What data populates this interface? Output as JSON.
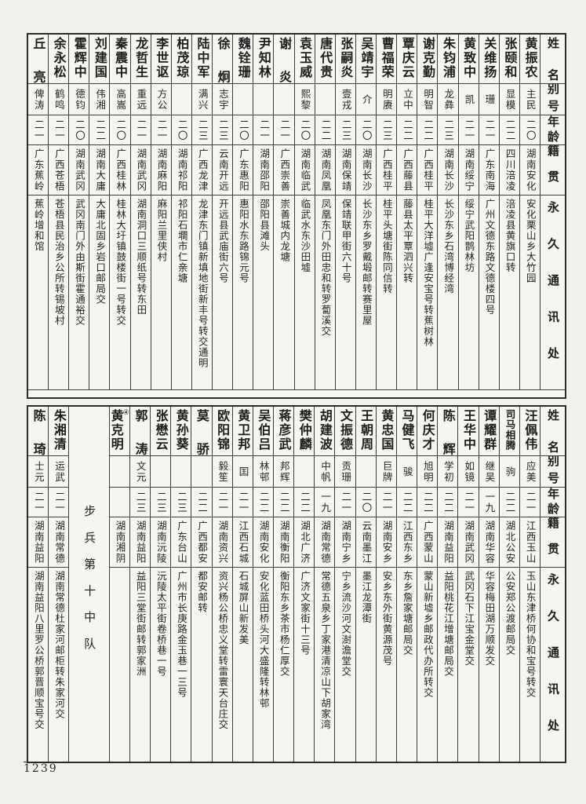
{
  "document": {
    "page_number": "1239",
    "column_headers": [
      "姓名",
      "别号",
      "年龄",
      "籍贯",
      "永久通讯处"
    ]
  },
  "tables": [
    {
      "id": "top",
      "people": [
        {
          "name": "黄振农",
          "alias": "主民",
          "age": "二〇",
          "native": "湖南安化",
          "address": "安化栗山乡大竹园"
        },
        {
          "name": "张颐和",
          "alias": "显模",
          "age": "二二",
          "native": "四川涪凌",
          "address": "涪凌县黄旗口转"
        },
        {
          "name": "关维扬",
          "alias": "珊",
          "age": "二一",
          "native": "广东南海",
          "address": "广州文德东路文德楼四号"
        },
        {
          "name": "黄致中",
          "alias": "凯",
          "age": "二一",
          "native": "湖南绥宁",
          "address": "绥宁武阳鹊林坊"
        },
        {
          "name": "朱钧浦",
          "alias": "龙彝",
          "age": "二三",
          "native": "湖南长沙",
          "address": "长沙东乡石湾博经湾"
        },
        {
          "name": "谢克勤",
          "alias": "明智",
          "age": "二二",
          "native": "广西桂平",
          "address": "桂平大洋墟广逢安宝号转蕉树林"
        },
        {
          "name": "覃庆云",
          "alias": "立中",
          "age": "二二",
          "native": "广西藤县",
          "address": "藤县太平覃泗兴转"
        },
        {
          "name": "曹福荣",
          "alias": "明赓",
          "age": "二三",
          "native": "广西桂平",
          "address": "桂平头塘街陈同信转"
        },
        {
          "name": "吴靖宇",
          "alias": "介",
          "age": "二〇",
          "native": "湖南长沙",
          "address": "长沙东乡罗戴塅邮转赛里屋"
        },
        {
          "name": "张嗣炎",
          "alias": "壹戎",
          "age": "二三",
          "native": "湖南保靖",
          "address": "保靖联甲街六十号"
        },
        {
          "name": "唐代贵",
          "alias": "",
          "age": "二二",
          "native": "湖南凤凰",
          "address": "凤凰东门外田忠和转罗蔔溪交"
        },
        {
          "name": "袁玉威",
          "alias": "熙黎",
          "age": "二〇",
          "native": "湖南临武",
          "address": "临武水东沙田墟"
        },
        {
          "name": "谢炎",
          "alias": "",
          "age": "二一",
          "native": "广西崇善",
          "address": "崇善城内龙塘"
        },
        {
          "name": "尹知林",
          "alias": "",
          "age": "二一",
          "native": "湖南邵阳",
          "address": "邵阳县滩头"
        },
        {
          "name": "魏铨珊",
          "alias": "",
          "age": "二〇",
          "native": "广东惠阳",
          "address": "惠阳水东路锦元号"
        },
        {
          "name": "徐炯",
          "alias": "志宇",
          "age": "二三",
          "native": "云南开远",
          "address": "开远县武庙街六号"
        },
        {
          "name": "陆中军",
          "alias": "满兴",
          "age": "二三",
          "native": "广西龙津",
          "address": "龙津东门镇新填地街新丰号转交通明"
        },
        {
          "name": "柏茂琼",
          "alias": "",
          "age": "二〇",
          "native": "湖南祁阳",
          "address": "祁阳石墹市仁亲塘"
        },
        {
          "name": "李世讴",
          "alias": "方公",
          "age": "二一",
          "native": "湖南麻阳",
          "address": "麻阳兰里侠村"
        },
        {
          "name": "龙哲生",
          "alias": "重远",
          "age": "二一",
          "native": "湖南武冈",
          "address": "湖南洞口三顺纸号转东田"
        },
        {
          "name": "秦震中",
          "alias": "高嵩",
          "age": "二〇",
          "native": "广西桂林",
          "address": "桂林大圩镇鼓楼街一号转交"
        },
        {
          "name": "刘建国",
          "alias": "伟湘",
          "age": "二二",
          "native": "湖南大庸",
          "address": "大庸北固乡岩口邮局交"
        },
        {
          "name": "霍辉中",
          "alias": "德钧",
          "age": "二〇",
          "native": "湖南武冈",
          "address": "武冈南门外由斯街霍通裕交"
        },
        {
          "name": "余永松",
          "alias": "鹤鸣",
          "age": "二一",
          "native": "广西苍梧",
          "address": "苍梧县民治乡公所转锡坡村"
        },
        {
          "name": "丘亮",
          "alias": "俾涛",
          "age": "二一",
          "native": "广东蕉岭",
          "address": "蕉岭增和馆"
        }
      ]
    },
    {
      "id": "bottom",
      "people": [
        {
          "name": "汪佩伟",
          "alias": "应美",
          "age": "二一",
          "native": "江西玉山",
          "address": "玉山东津桥何协和宝号转交"
        },
        {
          "name": "司马相腾",
          "alias": "驹",
          "age": "二二",
          "native": "湖北公安",
          "address": "公安郑公渡邮局交"
        },
        {
          "name": "谭耀群",
          "alias": "继吴",
          "age": "一九",
          "native": "湖南华容",
          "address": "华容梅田湖万顺发交"
        },
        {
          "name": "王华中",
          "alias": "如镜",
          "age": "二一",
          "native": "湖南武冈",
          "address": "武冈石下江宝金堂交"
        },
        {
          "name": "陈辉",
          "alias": "学初",
          "age": "二二",
          "native": "湖南益阳",
          "address": "益阳桃花江增塘邮局交"
        },
        {
          "name": "何庆才",
          "alias": "旭明",
          "age": "二二",
          "native": "广西蒙山",
          "address": "蒙山新墟乡邮政代办所转交"
        },
        {
          "name": "马健飞",
          "alias": "骏",
          "age": "二二",
          "native": "江西东乡",
          "address": "东乡詹家塘邮局交"
        },
        {
          "name": "黄忠国",
          "alias": "巨牌",
          "age": "二一",
          "native": "湖南安乡",
          "address": "安乡东外街黄源茂号"
        },
        {
          "name": "王朝周",
          "alias": "",
          "age": "二〇",
          "native": "云南墨江",
          "address": "墨江龙潭街"
        },
        {
          "name": "文振德",
          "alias": "贡珊",
          "age": "二一",
          "native": "湖南宁乡",
          "address": "宁乡流沙河文澍澹堂交"
        },
        {
          "name": "胡建波",
          "alias": "中帆",
          "age": "一九",
          "native": "湖南常德",
          "address": "常德五泉乡丁家港清凉山下胡家湾"
        },
        {
          "name": "樊仲麟",
          "alias": "",
          "age": "二二",
          "native": "湖北广济",
          "address": "广济文家街十三号"
        },
        {
          "name": "蒋彦武",
          "alias": "邦辉",
          "age": "二二",
          "native": "湖南衡阳",
          "address": "衡阳东乡茶市杨仁厚交"
        },
        {
          "name": "吴伯吕",
          "alias": "林邨",
          "age": "二二",
          "native": "湖南安化",
          "address": "安化蓝田桥头河大盛隆转林邨"
        },
        {
          "name": "黄卫邦",
          "alias": "囯",
          "age": "二一",
          "native": "江西石城",
          "address": "石城屏山新发美"
        },
        {
          "name": "欧阳锦",
          "alias": "毅笙",
          "age": "二一",
          "native": "湖南资兴",
          "address": "资兴杨公桥忠义堂转雷寰天台庄交"
        },
        {
          "name": "莫骄",
          "alias": "",
          "age": "二二",
          "native": "广西都安",
          "address": "都安邮转"
        },
        {
          "name": "黄孙葵",
          "alias": "",
          "age": "二三",
          "native": "广东台山",
          "address": "广州市长庚路金玉巷一三号"
        },
        {
          "name": "张懋云",
          "alias": "",
          "age": "二三",
          "native": "湖南沅陵",
          "address": "沅陵太平街卷桥巷一号"
        },
        {
          "name": "郭涛",
          "alias": "文元",
          "age": "二三",
          "native": "湖南益阳",
          "address": "益阳三堂街邮转郭家洲"
        },
        {
          "name": "黄克明",
          "note": "④",
          "alias": "",
          "age": "",
          "native": "湖南湘阴",
          "address": ""
        },
        {
          "section": "步兵第十中队"
        },
        {
          "name": "朱湘清",
          "alias": "运武",
          "age": "二一",
          "native": "湖南常德",
          "address": "湖南常德杜家河邮柜转朱家河交"
        },
        {
          "name": "陈琦",
          "alias": "士元",
          "age": "二一",
          "native": "湖南益阳",
          "address": "湖南益阳八里罗公桥郭晋顺宝号交"
        }
      ]
    }
  ]
}
